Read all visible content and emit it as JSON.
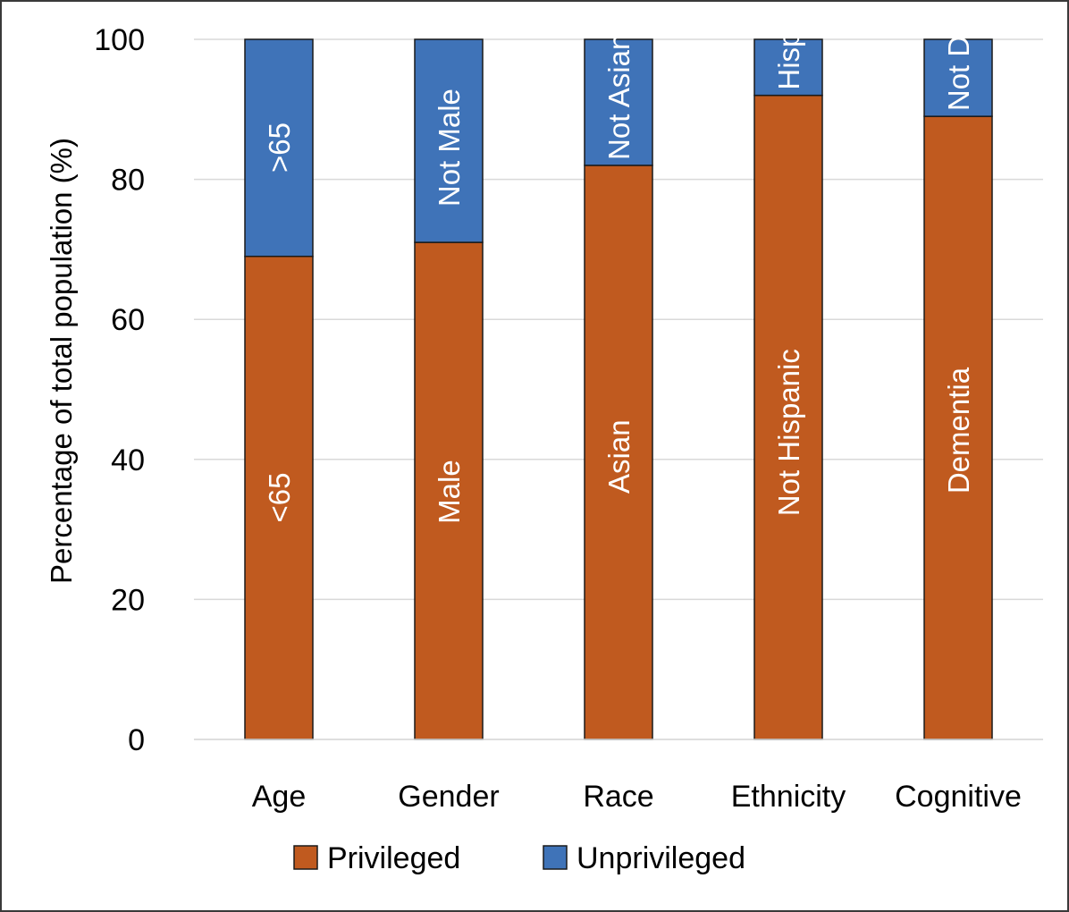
{
  "chart_data": {
    "type": "bar",
    "stacked": true,
    "title": "",
    "xlabel": "",
    "ylabel": "Percentage of total population (%)",
    "ylim": [
      0,
      100
    ],
    "yticks": [
      0,
      20,
      40,
      60,
      80,
      100
    ],
    "grid": true,
    "legend_position": "bottom",
    "categories": [
      "Age",
      "Gender",
      "Race",
      "Ethnicity",
      "Cognitive"
    ],
    "series": [
      {
        "name": "Privileged",
        "color": "#c05a1f",
        "values": [
          69,
          71,
          82,
          92,
          89
        ],
        "labels": [
          "<65",
          "Male",
          "Asian",
          "Not Hispanic",
          "Dementia"
        ]
      },
      {
        "name": "Unprivileged",
        "color": "#3f73b8",
        "values": [
          31,
          29,
          18,
          8,
          11
        ],
        "labels": [
          ">65",
          "Not Male",
          "Not Asian",
          "Hispanic",
          "Not Dementia"
        ]
      }
    ]
  }
}
